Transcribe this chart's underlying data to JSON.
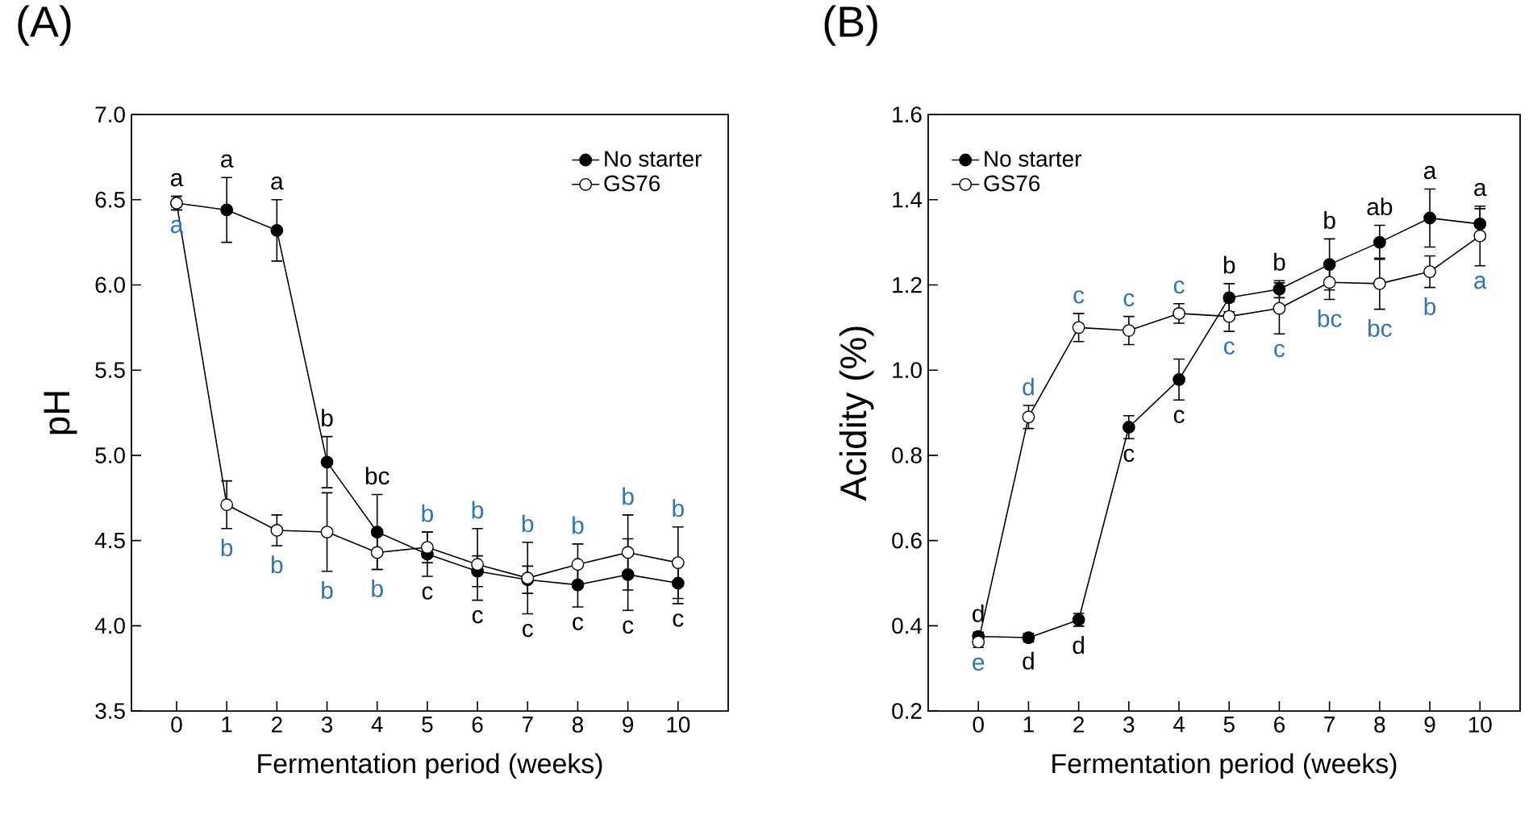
{
  "chart_data": [
    {
      "type": "line",
      "title": "(A)",
      "xlabel": "Fermentation period (weeks)",
      "ylabel": "pH",
      "x": [
        0,
        1,
        2,
        3,
        4,
        5,
        6,
        7,
        8,
        9,
        10
      ],
      "series": [
        {
          "name": "No starter",
          "color": "#000000",
          "values": [
            6.48,
            6.44,
            6.32,
            4.96,
            4.55,
            4.42,
            4.32,
            4.27,
            4.24,
            4.3,
            4.25
          ],
          "errors": [
            0.04,
            0.19,
            0.18,
            0.15,
            0.22,
            0.13,
            0.09,
            0.08,
            0.13,
            0.21,
            0.12
          ],
          "value_labels": [
            "a",
            "a",
            "a",
            "b",
            "bc",
            "c",
            "c",
            "c",
            "c",
            "c",
            "c"
          ]
        },
        {
          "name": "GS76",
          "color": "#ffffff",
          "values": [
            6.48,
            4.71,
            4.56,
            4.55,
            4.43,
            4.46,
            4.36,
            4.28,
            4.36,
            4.43,
            4.37
          ],
          "errors": [
            0.04,
            0.14,
            0.09,
            0.23,
            0.1,
            0.09,
            0.21,
            0.21,
            0.12,
            0.22,
            0.21
          ],
          "value_labels": [
            "a",
            "b",
            "b",
            "b",
            "b",
            "b",
            "b",
            "b",
            "b",
            "b",
            "b"
          ]
        }
      ],
      "xlim": [
        -0.9,
        11
      ],
      "xticks": [
        0,
        1,
        2,
        3,
        4,
        5,
        6,
        7,
        8,
        9,
        10
      ],
      "ylim": [
        3.5,
        7.0
      ],
      "yticks": [
        {
          "value": 3.5,
          "label": "3.5"
        },
        {
          "value": 4.0,
          "label": "4.0"
        },
        {
          "value": 4.5,
          "label": "4.5"
        },
        {
          "value": 5.0,
          "label": "5.0"
        },
        {
          "value": 5.5,
          "label": "5.5"
        },
        {
          "value": 6.0,
          "label": "6.0"
        },
        {
          "value": 6.5,
          "label": "6.5"
        },
        {
          "value": 7.0,
          "label": "7.0"
        }
      ],
      "legend": "top right",
      "marker": "circle",
      "line_style": "solid"
    },
    {
      "type": "line",
      "title": "(B)",
      "xlabel": "Fermentation period (weeks)",
      "ylabel": "Acidity (%)",
      "x": [
        0,
        1,
        2,
        3,
        4,
        5,
        6,
        7,
        8,
        9,
        10
      ],
      "series": [
        {
          "name": "No starter",
          "color": "#000000",
          "values": [
            0.375,
            0.372,
            0.414,
            0.866,
            0.978,
            1.17,
            1.19,
            1.248,
            1.3,
            1.357,
            1.343
          ],
          "errors": [
            0.01,
            0.01,
            0.015,
            0.027,
            0.048,
            0.033,
            0.02,
            0.06,
            0.04,
            0.068,
            0.036
          ],
          "value_labels": [
            "d",
            "d",
            "d",
            "c",
            "c",
            "b",
            "b",
            "b",
            "ab",
            "a",
            "a"
          ]
        },
        {
          "name": "GS76",
          "color": "#ffffff",
          "values": [
            0.362,
            0.89,
            1.1,
            1.093,
            1.133,
            1.126,
            1.145,
            1.206,
            1.203,
            1.231,
            1.315
          ],
          "errors": [
            0.013,
            0.027,
            0.033,
            0.033,
            0.023,
            0.035,
            0.06,
            0.04,
            0.06,
            0.037,
            0.07
          ],
          "value_labels": [
            "e",
            "d",
            "c",
            "c",
            "c",
            "c",
            "c",
            "bc",
            "bc",
            "b",
            "a"
          ]
        }
      ],
      "xlim": [
        -1,
        10.8
      ],
      "xticks": [
        0,
        1,
        2,
        3,
        4,
        5,
        6,
        7,
        8,
        9,
        10
      ],
      "ylim": [
        0.2,
        1.6
      ],
      "yticks": [
        {
          "value": 0.2,
          "label": "0.2"
        },
        {
          "value": 0.4,
          "label": "0.4"
        },
        {
          "value": 0.6,
          "label": "0.6"
        },
        {
          "value": 0.8,
          "label": "0.8"
        },
        {
          "value": 1.0,
          "label": "1.0"
        },
        {
          "value": 1.2,
          "label": "1.2"
        },
        {
          "value": 1.4,
          "label": "1.4"
        },
        {
          "value": 1.6,
          "label": "1.6"
        }
      ],
      "legend": "top left",
      "marker": "circle",
      "line_style": "solid"
    }
  ]
}
